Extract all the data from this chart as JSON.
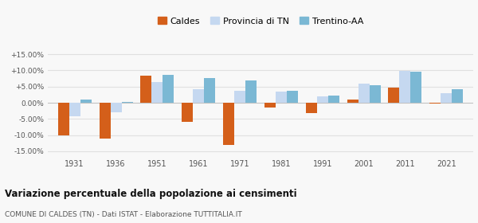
{
  "years": [
    1931,
    1936,
    1951,
    1961,
    1971,
    1981,
    1991,
    2001,
    2011,
    2021
  ],
  "caldes": [
    -10.2,
    -11.2,
    8.3,
    -6.0,
    -13.0,
    -1.5,
    -3.2,
    1.0,
    4.8,
    -0.3
  ],
  "provincia_tn": [
    -4.2,
    -3.0,
    6.3,
    4.3,
    3.8,
    3.5,
    2.0,
    6.0,
    9.8,
    3.0
  ],
  "trentino_aa": [
    1.0,
    0.3,
    8.7,
    7.7,
    7.0,
    3.8,
    2.2,
    5.5,
    9.5,
    4.2
  ],
  "caldes_color": "#d45f1a",
  "provincia_color": "#c5d8f0",
  "trentino_color": "#7bb8d4",
  "background_color": "#f8f8f8",
  "grid_color": "#e0e0e0",
  "yticks": [
    -15,
    -10,
    -5,
    0,
    5,
    10,
    15
  ],
  "ylim": [
    -16.5,
    18
  ],
  "title": "Variazione percentuale della popolazione ai censimenti",
  "subtitle": "COMUNE DI CALDES (TN) - Dati ISTAT - Elaborazione TUTTITALIA.IT",
  "legend_labels": [
    "Caldes",
    "Provincia di TN",
    "Trentino-AA"
  ],
  "bar_width": 0.27
}
